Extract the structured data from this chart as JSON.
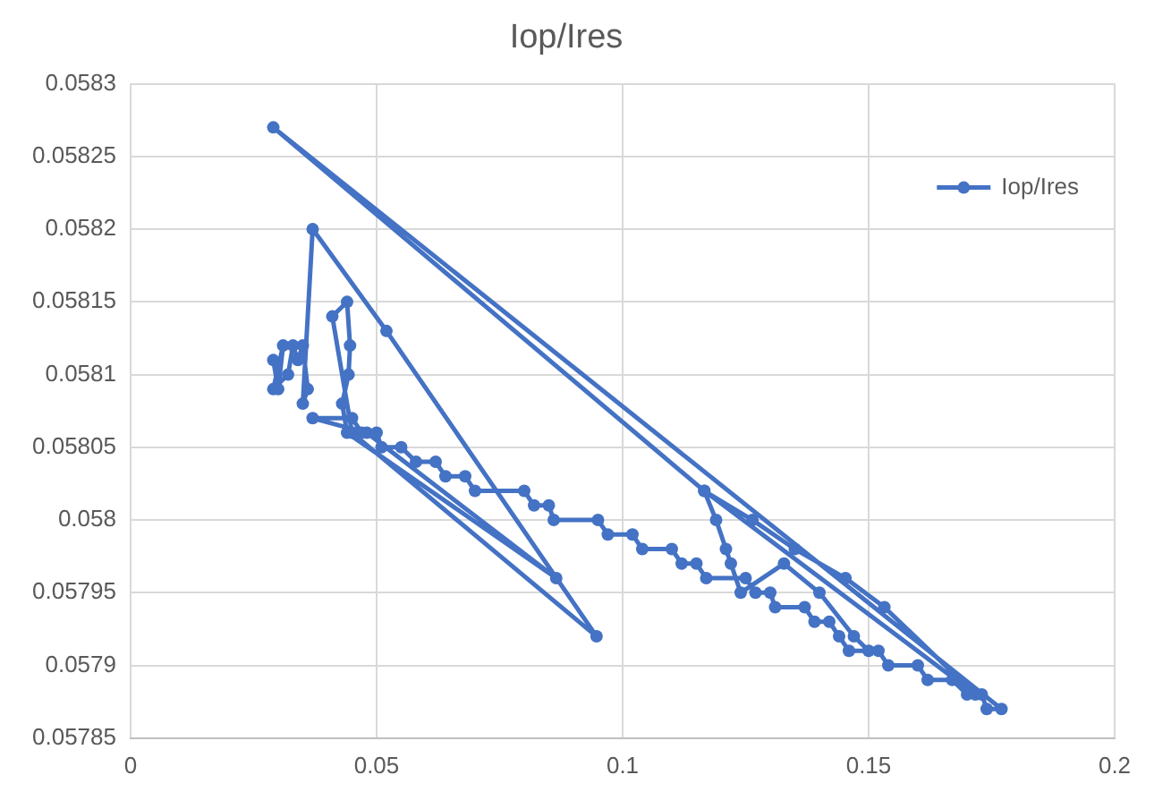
{
  "chart_data": {
    "type": "line",
    "title": "Iop/Ires",
    "legend": "top right",
    "grid": true,
    "marker": "circle",
    "line_style": "solid",
    "xlim": [
      0,
      0.2
    ],
    "xticks": [
      0,
      0.05,
      0.1,
      0.15,
      0.2
    ],
    "ylim": [
      0.05785,
      0.0583
    ],
    "yticks": [
      0.05785,
      0.0579,
      0.05795,
      0.058,
      0.05805,
      0.0581,
      0.05815,
      0.0582,
      0.05825,
      0.0583
    ],
    "series": [
      {
        "name": "Iop/Ires",
        "color": "#4472c4",
        "x": [
          0.029,
          0.03,
          0.031,
          0.029,
          0.032,
          0.033,
          0.034,
          0.035,
          0.036,
          0.035,
          0.037,
          0.052,
          0.0947,
          0.045,
          0.041,
          0.044,
          0.0446,
          0.0443,
          0.043,
          0.044,
          0.0865,
          0.048,
          0.037,
          0.045,
          0.047,
          0.05,
          0.051,
          0.055,
          0.058,
          0.062,
          0.064,
          0.068,
          0.07,
          0.08,
          0.082,
          0.085,
          0.086,
          0.095,
          0.097,
          0.102,
          0.104,
          0.11,
          0.112,
          0.115,
          0.117,
          0.125,
          0.127,
          0.13,
          0.131,
          0.137,
          0.139,
          0.142,
          0.144,
          0.146,
          0.152,
          0.154,
          0.16,
          0.162,
          0.167,
          0.17,
          0.173,
          0.174,
          0.177,
          0.029,
          0.1166,
          0.1264,
          0.135,
          0.1453,
          0.1532,
          0.1717,
          0.1166,
          0.119,
          0.121,
          0.122,
          0.124,
          0.1328,
          0.14,
          0.147,
          0.15
        ],
        "values": [
          0.05811,
          0.05809,
          0.05812,
          0.05809,
          0.0581,
          0.05812,
          0.05811,
          0.05812,
          0.05809,
          0.05808,
          0.0582,
          0.05813,
          0.05792,
          0.05806,
          0.05814,
          0.05815,
          0.05812,
          0.0581,
          0.05808,
          0.05806,
          0.05796,
          0.05806,
          0.05807,
          0.05807,
          0.05806,
          0.05806,
          0.05805,
          0.05805,
          0.05804,
          0.05804,
          0.05803,
          0.05803,
          0.05802,
          0.05802,
          0.05801,
          0.05801,
          0.058,
          0.058,
          0.05799,
          0.05799,
          0.05798,
          0.05798,
          0.05797,
          0.05797,
          0.05796,
          0.05796,
          0.05795,
          0.05795,
          0.05794,
          0.05794,
          0.05793,
          0.05793,
          0.05792,
          0.05791,
          0.05791,
          0.0579,
          0.0579,
          0.05789,
          0.05789,
          0.05788,
          0.05788,
          0.05787,
          0.05787,
          0.05827,
          0.05802,
          0.058,
          0.05798,
          0.05796,
          0.05794,
          0.05788,
          0.05802,
          0.058,
          0.05798,
          0.05797,
          0.05795,
          0.05797,
          0.05795,
          0.05792,
          0.05791
        ]
      }
    ]
  }
}
